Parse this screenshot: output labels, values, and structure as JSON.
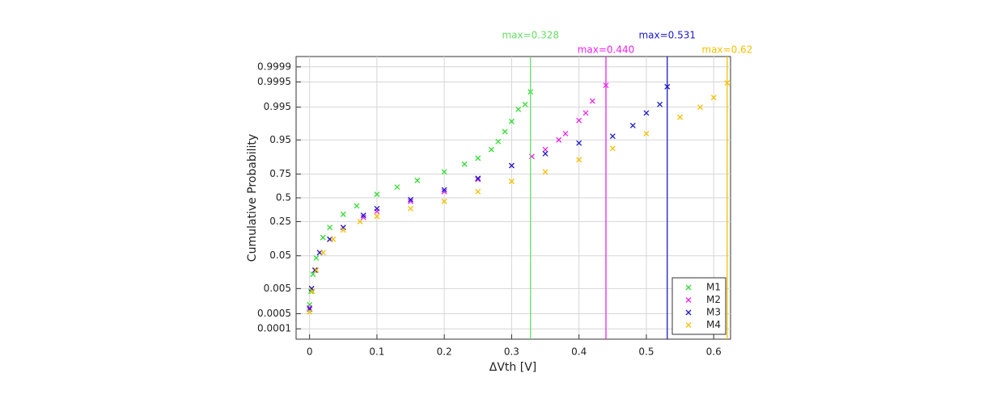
{
  "chart_data": {
    "type": "probability_scatter",
    "x_label": "ΔVth [V]",
    "y_label": "Cumulative Probability",
    "xlim": [
      -0.02,
      0.625
    ],
    "xticks": [
      0,
      0.1,
      0.2,
      0.3,
      0.4,
      0.5,
      0.6
    ],
    "ylim": [
      3e-05,
      0.99997
    ],
    "yticks": [
      0.0001,
      0.0005,
      0.005,
      0.05,
      0.25,
      0.5,
      0.75,
      0.95,
      0.995,
      0.9995,
      0.9999
    ],
    "y_scale": "probit",
    "grid": true,
    "legend_position": "lower right",
    "series": [
      {
        "name": "M1",
        "color": "#33dd33",
        "x": [
          0,
          0.002,
          0.005,
          0.01,
          0.02,
          0.03,
          0.05,
          0.07,
          0.1,
          0.13,
          0.16,
          0.2,
          0.23,
          0.25,
          0.27,
          0.28,
          0.29,
          0.3,
          0.31,
          0.32,
          0.328
        ],
        "values": [
          0.0012,
          0.004,
          0.015,
          0.044,
          0.13,
          0.2,
          0.32,
          0.41,
          0.54,
          0.62,
          0.69,
          0.77,
          0.83,
          0.87,
          0.915,
          0.945,
          0.97,
          0.985,
          0.994,
          0.996,
          0.9987
        ]
      },
      {
        "name": "M2",
        "color": "#ee22ee",
        "x": [
          0,
          0.003,
          0.008,
          0.015,
          0.03,
          0.05,
          0.08,
          0.1,
          0.15,
          0.2,
          0.25,
          0.3,
          0.33,
          0.35,
          0.37,
          0.38,
          0.4,
          0.41,
          0.42,
          0.44
        ],
        "values": [
          0.0009,
          0.005,
          0.02,
          0.06,
          0.12,
          0.2,
          0.29,
          0.35,
          0.46,
          0.57,
          0.7,
          0.82,
          0.88,
          0.915,
          0.95,
          0.966,
          0.986,
          0.992,
          0.997,
          0.9993
        ]
      },
      {
        "name": "M3",
        "color": "#1a1acc",
        "x": [
          0,
          0.003,
          0.008,
          0.015,
          0.03,
          0.05,
          0.08,
          0.1,
          0.15,
          0.2,
          0.25,
          0.3,
          0.35,
          0.4,
          0.45,
          0.48,
          0.5,
          0.52,
          0.531
        ],
        "values": [
          0.0008,
          0.005,
          0.02,
          0.06,
          0.12,
          0.2,
          0.31,
          0.38,
          0.48,
          0.59,
          0.71,
          0.82,
          0.895,
          0.94,
          0.96,
          0.98,
          0.992,
          0.996,
          0.9992
        ]
      },
      {
        "name": "M4",
        "color": "#f5c000",
        "x": [
          0,
          0.004,
          0.01,
          0.02,
          0.035,
          0.05,
          0.075,
          0.1,
          0.15,
          0.2,
          0.25,
          0.3,
          0.35,
          0.4,
          0.45,
          0.5,
          0.55,
          0.58,
          0.6,
          0.62
        ],
        "values": [
          0.0006,
          0.004,
          0.02,
          0.06,
          0.12,
          0.18,
          0.25,
          0.3,
          0.38,
          0.46,
          0.57,
          0.68,
          0.77,
          0.86,
          0.92,
          0.966,
          0.989,
          0.995,
          0.9978,
          0.99945
        ]
      }
    ],
    "markers": [
      {
        "value": 0.328,
        "label": "max=0.328",
        "color": "#66dd66"
      },
      {
        "value": 0.44,
        "label": "max=0.440",
        "color": "#ee22ee"
      },
      {
        "value": 0.531,
        "label": "max=0.531",
        "color": "#1a1acc"
      },
      {
        "value": 0.62,
        "label": "max=0.62",
        "color": "#f5c000"
      }
    ]
  }
}
